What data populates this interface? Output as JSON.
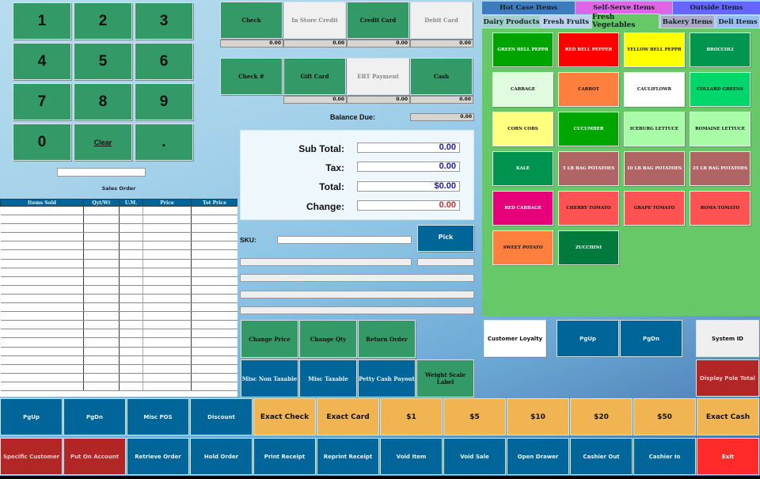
{
  "keypad": {
    "keys": [
      "1",
      "2",
      "3",
      "4",
      "5",
      "6",
      "7",
      "8",
      "9",
      "0",
      "Clear",
      "."
    ]
  },
  "keypad_input": "",
  "sales_order_label": "Sales Order",
  "payments_row1": [
    {
      "label": "Check",
      "amount": "0.00",
      "style": "green"
    },
    {
      "label": "In Store Credit",
      "amount": "0.00",
      "style": "lightg"
    },
    {
      "label": "Credit Card",
      "amount": "0.00",
      "style": "green"
    },
    {
      "label": "Debit Card",
      "amount": "0.00",
      "style": "lightg"
    }
  ],
  "payments_row2": [
    {
      "label": "Check #",
      "amount": null,
      "style": "green"
    },
    {
      "label": "Gift Card",
      "amount": "0.00",
      "style": "green"
    },
    {
      "label": "EBT Payment",
      "amount": "0.00",
      "style": "lightg"
    },
    {
      "label": "Cash",
      "amount": "0.00",
      "style": "green"
    }
  ],
  "balance_due": {
    "label": "Balance Due:",
    "value": "0.00"
  },
  "totals": {
    "sub_total": {
      "label": "Sub Total:",
      "value": "0.00"
    },
    "tax": {
      "label": "Tax:",
      "value": "0.00"
    },
    "total": {
      "label": "Total:",
      "value": "$0.00"
    },
    "change": {
      "label": "Change:",
      "value": "0.00"
    }
  },
  "sku": {
    "label": "SKU:",
    "value": ""
  },
  "pick_label": "Pick",
  "table": {
    "columns": [
      "Items Sold",
      "Qyt/Wt",
      "U.M.",
      "Price",
      "Tot Price"
    ],
    "rows": []
  },
  "actions_row1": [
    "Change Price",
    "Change Qty",
    "Return Order"
  ],
  "actions_row2": [
    {
      "label": "Misc Non Taxable",
      "style": "blue"
    },
    {
      "label": "Misc Taxable",
      "style": "blue"
    },
    {
      "label": "Petty Cash Payout",
      "style": "blue"
    },
    {
      "label": "Weight Scale Label",
      "style": "green"
    }
  ],
  "category_tabs_top": [
    {
      "label": "Hot Case Items",
      "color": "#3d7bbf"
    },
    {
      "label": "Self-Serve Items",
      "color": "#de66e6"
    },
    {
      "label": "Outside Items",
      "color": "#6666ff"
    }
  ],
  "category_tabs": [
    {
      "label": "Dairy Products",
      "color": "#9fcfcb"
    },
    {
      "label": "Fresh Fruits",
      "color": "#bcd0ef"
    },
    {
      "label": "Fresh Vegetables",
      "color": "#66c866",
      "active": true
    },
    {
      "label": "Bakery Items",
      "color": "#aaaac8"
    },
    {
      "label": "Deli Items",
      "color": "#9cbcf4"
    }
  ],
  "products": [
    {
      "label": "GREEN BELL PEPPR",
      "bg": "#00a300",
      "fg": "#ffffff"
    },
    {
      "label": "RED BELL PEPPER",
      "bg": "#ff0000",
      "fg": "#ffffff"
    },
    {
      "label": "YELLOW BELL PEPPR",
      "bg": "#ffff00",
      "fg": "#111111"
    },
    {
      "label": "BROCCOLI",
      "bg": "#00964f",
      "fg": "#ffffff"
    },
    {
      "label": "CABBAGE",
      "bg": "#e1fbe1",
      "fg": "#111111"
    },
    {
      "label": "CARROT",
      "bg": "#ff7f3f",
      "fg": "#111111"
    },
    {
      "label": "CAULIFLOWR",
      "bg": "#ffffff",
      "fg": "#111111"
    },
    {
      "label": "COLLARD GREENS",
      "bg": "#00d66b",
      "fg": "#111111"
    },
    {
      "label": "CORN COBS",
      "bg": "#ffff80",
      "fg": "#111111"
    },
    {
      "label": "CUCUMBER",
      "bg": "#00a600",
      "fg": "#ffffff"
    },
    {
      "label": "ICEBURG LETTUCE",
      "bg": "#a8fca8",
      "fg": "#111111"
    },
    {
      "label": "ROMAINE LETTUCE",
      "bg": "#a8fca8",
      "fg": "#111111"
    },
    {
      "label": "KALE",
      "bg": "#00934f",
      "fg": "#ffffff"
    },
    {
      "label": "5 LB BAG POTATOES",
      "bg": "#b06565",
      "fg": "#ffffff"
    },
    {
      "label": "10 LB BAG POTATOES",
      "bg": "#b06565",
      "fg": "#ffffff"
    },
    {
      "label": "25 LB BAG POTATOES",
      "bg": "#b06565",
      "fg": "#ffffff"
    },
    {
      "label": "RED CABBAGE",
      "bg": "#e6007a",
      "fg": "#ffffff"
    },
    {
      "label": "CHERRY TOMATO",
      "bg": "#ff5252",
      "fg": "#111111"
    },
    {
      "label": "GRAPE TOMATO",
      "bg": "#ff5252",
      "fg": "#111111"
    },
    {
      "label": "ROMA TOMATO",
      "bg": "#ff5252",
      "fg": "#111111"
    },
    {
      "label": "SWEET POTATO",
      "bg": "#ff7f3f",
      "fg": "#111111"
    },
    {
      "label": "ZUCCHINI",
      "bg": "#007a3d",
      "fg": "#ffffff"
    }
  ],
  "side_buttons": {
    "customer_loyalty": "Customer Loyalty",
    "pgup": "PgUp",
    "pgdn": "PgDn",
    "system_id": "System ID",
    "display_pole_total": "Display Pole Total"
  },
  "bottom_row1": [
    {
      "label": "PgUp",
      "style": "blue"
    },
    {
      "label": "PgDn",
      "style": "blue"
    },
    {
      "label": "Misc POS",
      "style": "blue"
    },
    {
      "label": "Discount",
      "style": "blue"
    },
    {
      "label": "Exact Check",
      "style": "orange"
    },
    {
      "label": "Exact Card",
      "style": "orange"
    },
    {
      "label": "$1",
      "style": "orange"
    },
    {
      "label": "$5",
      "style": "orange"
    },
    {
      "label": "$10",
      "style": "orange"
    },
    {
      "label": "$20",
      "style": "orange"
    },
    {
      "label": "$50",
      "style": "orange"
    },
    {
      "label": "Exact Cash",
      "style": "orange"
    }
  ],
  "bottom_row2": [
    {
      "label": "Specific Customer",
      "style": "red"
    },
    {
      "label": "Put On Account",
      "style": "red"
    },
    {
      "label": "Retrieve Order",
      "style": "blue"
    },
    {
      "label": "Hold Order",
      "style": "blue"
    },
    {
      "label": "Print Receipt",
      "style": "blue"
    },
    {
      "label": "Reprint Receipt",
      "style": "blue"
    },
    {
      "label": "Void Item",
      "style": "blue"
    },
    {
      "label": "Void Sale",
      "style": "blue"
    },
    {
      "label": "Open Drawer",
      "style": "blue"
    },
    {
      "label": "Cashier Out",
      "style": "blue"
    },
    {
      "label": "Cashier In",
      "style": "blue"
    },
    {
      "label": "Exit",
      "style": "brightred"
    }
  ]
}
